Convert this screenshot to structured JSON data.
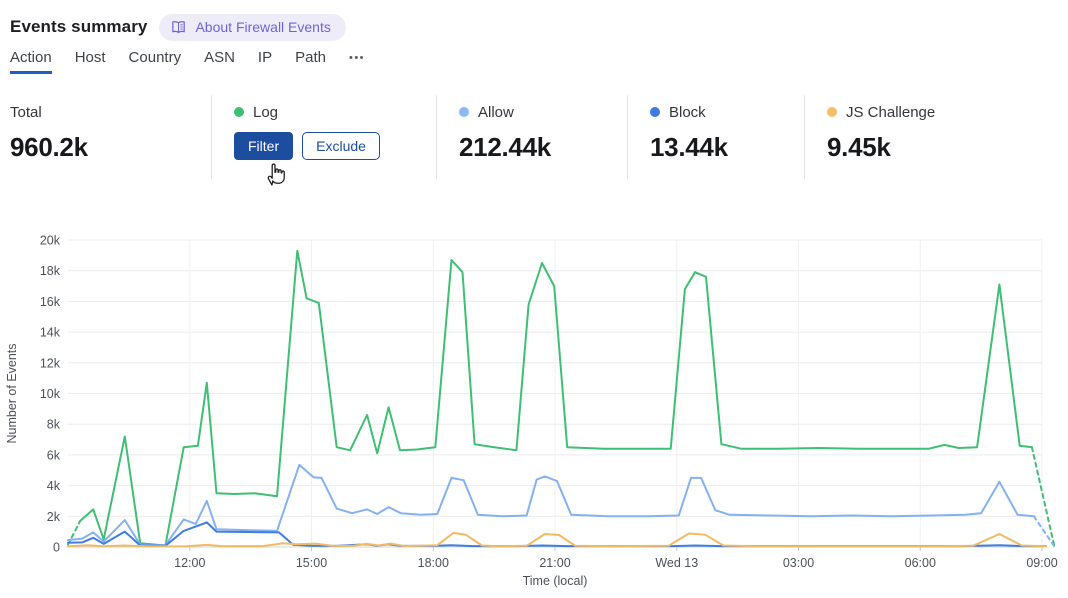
{
  "header": {
    "title": "Events summary",
    "about_badge_label": "About Firewall Events"
  },
  "tabs": {
    "items": [
      {
        "label": "Action",
        "active": true
      },
      {
        "label": "Host",
        "active": false
      },
      {
        "label": "Country",
        "active": false
      },
      {
        "label": "ASN",
        "active": false
      },
      {
        "label": "IP",
        "active": false
      },
      {
        "label": "Path",
        "active": false
      }
    ],
    "more_label": "•••"
  },
  "stats": {
    "total": {
      "label": "Total",
      "value": "960.2k"
    },
    "log": {
      "label": "Log",
      "color": "#3fbf73",
      "filter_label": "Filter",
      "exclude_label": "Exclude"
    },
    "allow": {
      "label": "Allow",
      "value": "212.44k",
      "color": "#8cb8f4"
    },
    "block": {
      "label": "Block",
      "value": "13.44k",
      "color": "#3b7be2"
    },
    "js_challenge": {
      "label": "JS Challenge",
      "value": "9.45k",
      "color": "#f4bd66"
    }
  },
  "theme": {
    "button_blue": "#1d4d9f",
    "badge_bg": "#efecfa",
    "badge_fg": "#6e63d6",
    "tab_underline": "#1f5fc0",
    "grid_color": "#ececec",
    "axis_text_color": "#4c5157"
  },
  "chart_data": {
    "type": "line",
    "title": "",
    "xlabel": "Time (local)",
    "ylabel": "Number of Events",
    "x_unit": "hours after 09:00 local, spanning to 09:00 next day (Wed 13 = midnight)",
    "y_unit": "thousands of events",
    "xlim": [
      0,
      24
    ],
    "ylim": [
      0,
      20
    ],
    "grid": true,
    "legend_position": "top stats row (Log, Allow, Block, JS Challenge)",
    "x_ticks": [
      {
        "x": 3,
        "label": "12:00"
      },
      {
        "x": 6,
        "label": "15:00"
      },
      {
        "x": 9,
        "label": "18:00"
      },
      {
        "x": 12,
        "label": "21:00"
      },
      {
        "x": 15,
        "label": "Wed 13"
      },
      {
        "x": 18,
        "label": "03:00"
      },
      {
        "x": 21,
        "label": "06:00"
      },
      {
        "x": 24,
        "label": "09:00"
      }
    ],
    "y_ticks": [
      {
        "y": 0,
        "label": "0"
      },
      {
        "y": 2,
        "label": "2k"
      },
      {
        "y": 4,
        "label": "4k"
      },
      {
        "y": 6,
        "label": "6k"
      },
      {
        "y": 8,
        "label": "8k"
      },
      {
        "y": 10,
        "label": "10k"
      },
      {
        "y": 12,
        "label": "12k"
      },
      {
        "y": 14,
        "label": "14k"
      },
      {
        "y": 16,
        "label": "16k"
      },
      {
        "y": 18,
        "label": "18k"
      },
      {
        "y": 20,
        "label": "20k"
      }
    ],
    "series": [
      {
        "name": "Log",
        "color": "#3fbf73",
        "segments": [
          {
            "dashed": true,
            "points": [
              [
                0,
                0.15
              ],
              [
                0.3,
                1.7
              ]
            ]
          },
          {
            "dashed": false,
            "points": [
              [
                0.3,
                1.7
              ],
              [
                0.62,
                2.45
              ],
              [
                0.88,
                0.5
              ],
              [
                1.4,
                7.2
              ],
              [
                1.78,
                0.25
              ],
              [
                2.4,
                0.1
              ],
              [
                2.85,
                6.5
              ],
              [
                3.2,
                6.6
              ],
              [
                3.42,
                10.7
              ],
              [
                3.66,
                3.5
              ],
              [
                4.1,
                3.45
              ],
              [
                4.6,
                3.5
              ],
              [
                5.15,
                3.3
              ],
              [
                5.65,
                19.3
              ],
              [
                5.88,
                16.2
              ],
              [
                6.18,
                15.9
              ],
              [
                6.62,
                6.5
              ],
              [
                6.95,
                6.3
              ],
              [
                7.37,
                8.6
              ],
              [
                7.62,
                6.1
              ],
              [
                7.9,
                9.1
              ],
              [
                8.18,
                6.3
              ],
              [
                8.6,
                6.35
              ],
              [
                9.05,
                6.5
              ],
              [
                9.45,
                18.7
              ],
              [
                9.72,
                17.9
              ],
              [
                10.02,
                6.7
              ],
              [
                10.5,
                6.5
              ],
              [
                11.05,
                6.3
              ],
              [
                11.35,
                15.8
              ],
              [
                11.68,
                18.5
              ],
              [
                11.98,
                17.0
              ],
              [
                12.3,
                6.5
              ],
              [
                13.2,
                6.4
              ],
              [
                14.2,
                6.4
              ],
              [
                14.85,
                6.4
              ],
              [
                15.2,
                16.8
              ],
              [
                15.45,
                17.9
              ],
              [
                15.72,
                17.6
              ],
              [
                16.1,
                6.7
              ],
              [
                16.6,
                6.4
              ],
              [
                17.5,
                6.4
              ],
              [
                18.5,
                6.45
              ],
              [
                19.5,
                6.4
              ],
              [
                20.5,
                6.4
              ],
              [
                21.2,
                6.4
              ],
              [
                21.6,
                6.65
              ],
              [
                21.95,
                6.45
              ],
              [
                22.4,
                6.5
              ],
              [
                22.95,
                17.1
              ],
              [
                23.45,
                6.6
              ],
              [
                23.75,
                6.5
              ]
            ]
          },
          {
            "dashed": true,
            "points": [
              [
                23.75,
                6.5
              ],
              [
                24.3,
                0.1
              ]
            ]
          }
        ]
      },
      {
        "name": "Allow",
        "color": "#85b1f0",
        "segments": [
          {
            "dashed": false,
            "points": [
              [
                0,
                0.45
              ],
              [
                0.35,
                0.55
              ],
              [
                0.62,
                0.95
              ],
              [
                0.88,
                0.35
              ],
              [
                1.4,
                1.75
              ],
              [
                1.78,
                0.15
              ],
              [
                2.4,
                0.12
              ],
              [
                2.85,
                1.8
              ],
              [
                3.15,
                1.5
              ],
              [
                3.42,
                3.0
              ],
              [
                3.66,
                1.15
              ],
              [
                4.4,
                1.1
              ],
              [
                5.15,
                1.05
              ],
              [
                5.7,
                5.35
              ],
              [
                6.05,
                4.55
              ],
              [
                6.25,
                4.5
              ],
              [
                6.62,
                2.5
              ],
              [
                7.0,
                2.2
              ],
              [
                7.37,
                2.45
              ],
              [
                7.62,
                2.15
              ],
              [
                7.9,
                2.6
              ],
              [
                8.2,
                2.2
              ],
              [
                8.7,
                2.1
              ],
              [
                9.1,
                2.15
              ],
              [
                9.45,
                4.5
              ],
              [
                9.75,
                4.35
              ],
              [
                10.1,
                2.1
              ],
              [
                10.7,
                2.0
              ],
              [
                11.3,
                2.05
              ],
              [
                11.55,
                4.4
              ],
              [
                11.75,
                4.6
              ],
              [
                12.05,
                4.3
              ],
              [
                12.4,
                2.1
              ],
              [
                13.3,
                2.0
              ],
              [
                14.3,
                2.0
              ],
              [
                15.05,
                2.05
              ],
              [
                15.35,
                4.5
              ],
              [
                15.6,
                4.5
              ],
              [
                15.95,
                2.4
              ],
              [
                16.3,
                2.1
              ],
              [
                17.3,
                2.05
              ],
              [
                18.3,
                2.0
              ],
              [
                19.3,
                2.05
              ],
              [
                20.3,
                2.0
              ],
              [
                21.3,
                2.05
              ],
              [
                22.1,
                2.1
              ],
              [
                22.5,
                2.2
              ],
              [
                22.95,
                4.25
              ],
              [
                23.4,
                2.1
              ],
              [
                23.8,
                2.0
              ]
            ]
          },
          {
            "dashed": true,
            "points": [
              [
                23.8,
                2.0
              ],
              [
                24.3,
                0.05
              ]
            ]
          }
        ]
      },
      {
        "name": "Block",
        "color": "#3f7ee0",
        "segments": [
          {
            "dashed": false,
            "points": [
              [
                0,
                0.28
              ],
              [
                0.35,
                0.3
              ],
              [
                0.62,
                0.6
              ],
              [
                0.88,
                0.2
              ],
              [
                1.4,
                1.0
              ],
              [
                1.78,
                0.1
              ],
              [
                2.4,
                0.08
              ],
              [
                2.85,
                1.05
              ],
              [
                3.42,
                1.6
              ],
              [
                3.66,
                1.0
              ],
              [
                4.4,
                0.98
              ],
              [
                5.2,
                0.95
              ],
              [
                5.55,
                0.15
              ],
              [
                6.0,
                0.08
              ],
              [
                6.6,
                0.07
              ],
              [
                7.37,
                0.18
              ],
              [
                7.62,
                0.08
              ],
              [
                7.9,
                0.18
              ],
              [
                8.2,
                0.07
              ],
              [
                9.0,
                0.07
              ],
              [
                9.45,
                0.12
              ],
              [
                10.0,
                0.06
              ],
              [
                11.0,
                0.06
              ],
              [
                11.7,
                0.1
              ],
              [
                12.3,
                0.06
              ],
              [
                13.5,
                0.06
              ],
              [
                14.9,
                0.06
              ],
              [
                15.45,
                0.1
              ],
              [
                16.1,
                0.06
              ],
              [
                17.5,
                0.06
              ],
              [
                19.0,
                0.06
              ],
              [
                20.5,
                0.06
              ],
              [
                22.0,
                0.06
              ],
              [
                22.95,
                0.12
              ],
              [
                23.5,
                0.06
              ],
              [
                24.1,
                0.06
              ]
            ]
          }
        ]
      },
      {
        "name": "JS Challenge",
        "color": "#f2ba65",
        "segments": [
          {
            "dashed": false,
            "points": [
              [
                0,
                0.05
              ],
              [
                0.5,
                0.12
              ],
              [
                0.85,
                0.05
              ],
              [
                1.4,
                0.1
              ],
              [
                2.0,
                0.04
              ],
              [
                2.9,
                0.05
              ],
              [
                3.42,
                0.14
              ],
              [
                3.8,
                0.06
              ],
              [
                4.8,
                0.06
              ],
              [
                5.3,
                0.25
              ],
              [
                5.65,
                0.18
              ],
              [
                6.1,
                0.22
              ],
              [
                6.5,
                0.08
              ],
              [
                7.0,
                0.07
              ],
              [
                7.37,
                0.2
              ],
              [
                7.65,
                0.1
              ],
              [
                7.95,
                0.22
              ],
              [
                8.3,
                0.06
              ],
              [
                9.1,
                0.12
              ],
              [
                9.5,
                0.92
              ],
              [
                9.8,
                0.8
              ],
              [
                10.2,
                0.1
              ],
              [
                10.6,
                0.05
              ],
              [
                11.3,
                0.08
              ],
              [
                11.75,
                0.85
              ],
              [
                12.1,
                0.78
              ],
              [
                12.5,
                0.08
              ],
              [
                13.5,
                0.05
              ],
              [
                14.8,
                0.08
              ],
              [
                15.3,
                0.88
              ],
              [
                15.7,
                0.8
              ],
              [
                16.15,
                0.1
              ],
              [
                17.0,
                0.05
              ],
              [
                18.5,
                0.05
              ],
              [
                20.0,
                0.05
              ],
              [
                21.5,
                0.05
              ],
              [
                22.3,
                0.08
              ],
              [
                22.95,
                0.85
              ],
              [
                23.5,
                0.1
              ],
              [
                24.1,
                0.05
              ]
            ]
          }
        ]
      }
    ]
  }
}
